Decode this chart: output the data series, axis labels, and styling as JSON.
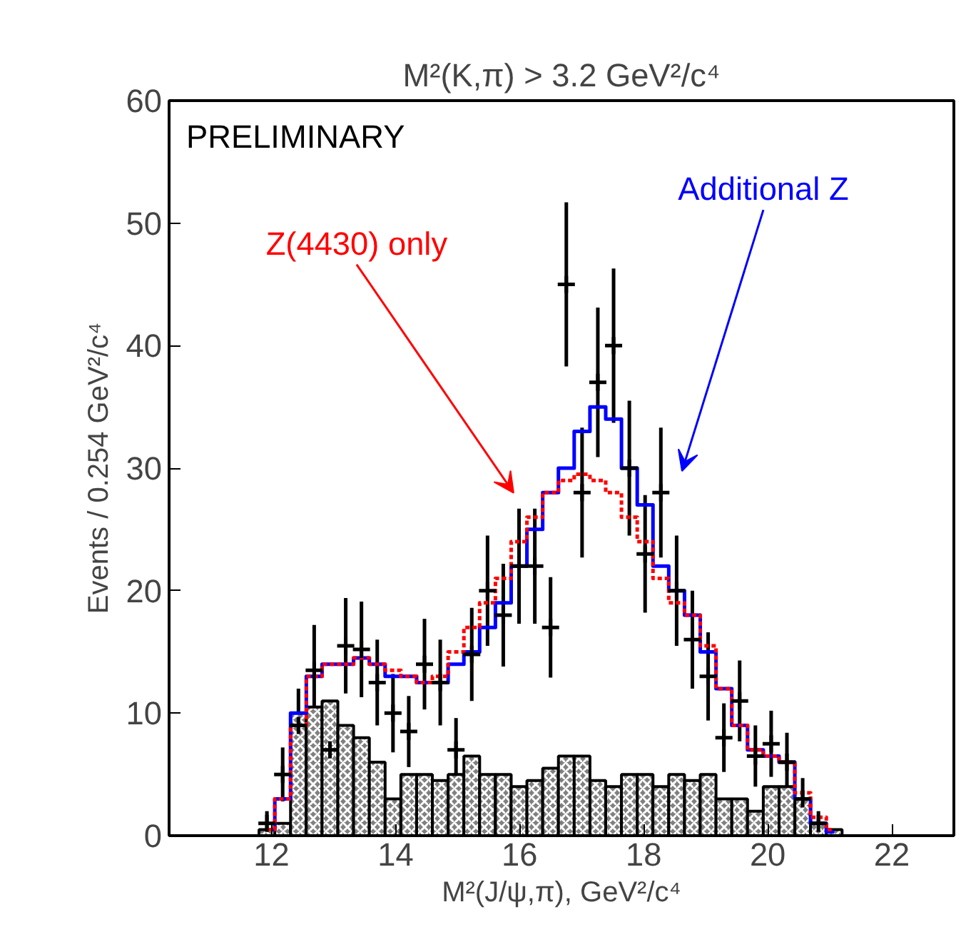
{
  "chart_data": {
    "type": "step",
    "title": "M²(K,π) > 3.2 GeV²/c⁴",
    "xlabel": "M²(J/ψ,π), GeV²/c⁴",
    "ylabel": "Events / 0.254 GeV²/c⁴",
    "x": [
      11.927,
      12.181,
      12.435,
      12.689,
      12.943,
      13.197,
      13.451,
      13.705,
      13.959,
      14.213,
      14.467,
      14.721,
      14.975,
      15.229,
      15.483,
      15.737,
      15.991,
      16.245,
      16.499,
      16.753,
      17.007,
      17.261,
      17.515,
      17.769,
      18.023,
      18.277,
      18.531,
      18.785,
      19.039,
      19.293,
      19.547,
      19.801,
      20.055,
      20.309,
      20.563,
      20.817,
      21.071
    ],
    "series": [
      {
        "type": "bar",
        "color": "#808080",
        "values": [
          0.5,
          1,
          10,
          10.5,
          11,
          9,
          8,
          6,
          3,
          5,
          5,
          4.5,
          5,
          6.5,
          5,
          5,
          4,
          4.5,
          5.5,
          6.5,
          6.5,
          4.5,
          4,
          5,
          5,
          4,
          5,
          4.5,
          5,
          3,
          3,
          2,
          4,
          4,
          3,
          1,
          0.5
        ]
      },
      {
        "name": "Additional Z",
        "color": "#0000ff",
        "line_style": "solid",
        "values": [
          0.5,
          3,
          10,
          13,
          14,
          14,
          14.5,
          14,
          13,
          13,
          12.5,
          12.5,
          14,
          15,
          17,
          19,
          22,
          25,
          28,
          30,
          33,
          35,
          34,
          30,
          27,
          22,
          20,
          18,
          15,
          12,
          9,
          7,
          6.5,
          6,
          3,
          1,
          0.3
        ]
      },
      {
        "name": "Z(4430) only",
        "color": "#ff0000",
        "line_style": "dashed",
        "values": [
          0.5,
          3,
          9,
          13,
          14,
          14,
          14.5,
          14,
          13.5,
          13,
          12.5,
          13,
          15,
          17,
          19,
          21,
          24,
          26,
          28,
          29,
          29.5,
          29,
          28,
          26,
          24,
          21,
          19,
          18,
          15.5,
          12,
          9,
          7,
          6.5,
          6,
          3.5,
          1.5,
          0.5
        ]
      },
      {
        "type": "scatter",
        "color": "#000000",
        "marker": "cross",
        "values": [
          1,
          5,
          9,
          13.5,
          7,
          15.5,
          15.2,
          12.5,
          10,
          8.5,
          14,
          12.5,
          7,
          14.8,
          20,
          18,
          22,
          22,
          17,
          45,
          28,
          37,
          40,
          30,
          23,
          28,
          20,
          16,
          13,
          8,
          11,
          6.5,
          7.5,
          6,
          3,
          1,
          null
        ],
        "errors": [
          1,
          2.2,
          3,
          3.7,
          2.6,
          3.9,
          3.9,
          3.5,
          3.2,
          2.9,
          3.7,
          3.5,
          2.6,
          3.8,
          4.5,
          4.2,
          4.7,
          4.7,
          4.1,
          6.7,
          5.3,
          6.1,
          6.3,
          5.5,
          4.8,
          5.3,
          4.5,
          4,
          3.6,
          2.8,
          3.3,
          2.5,
          2.7,
          2.4,
          1.7,
          1,
          null
        ]
      }
    ],
    "xlim": [
      10.35,
      23
    ],
    "ylim": [
      0,
      60
    ],
    "xticks": [
      12,
      14,
      16,
      18,
      20,
      22
    ],
    "yticks": [
      0,
      10,
      20,
      30,
      40,
      50,
      60
    ],
    "grid": false,
    "legend": false,
    "annotations": [
      "PRELIMINARY"
    ]
  }
}
